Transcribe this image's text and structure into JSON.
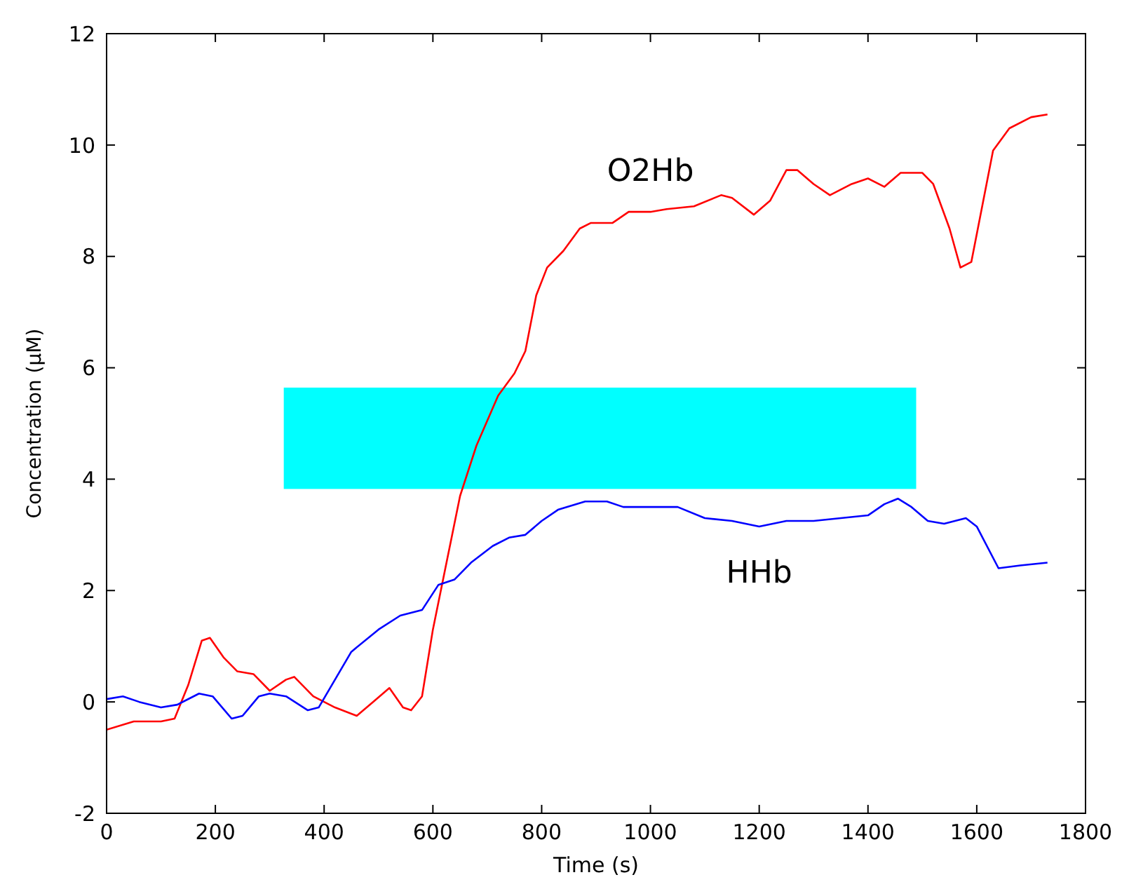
{
  "chart_data": {
    "type": "line",
    "xlabel": "Time (s)",
    "ylabel": "Concentration (μM)",
    "xlim": [
      0,
      1800
    ],
    "xticks": [
      0,
      200,
      400,
      600,
      800,
      1000,
      1200,
      1400,
      1600,
      1800
    ],
    "ylim": [
      -2,
      12
    ],
    "yticks": [
      -2,
      0,
      2,
      4,
      6,
      8,
      10,
      12
    ],
    "marker": "none",
    "line_style": "solid",
    "series": [
      {
        "name": "O2Hb",
        "color": "#ff0000",
        "x": [
          0,
          50,
          100,
          125,
          150,
          175,
          190,
          215,
          240,
          270,
          300,
          330,
          345,
          380,
          420,
          460,
          490,
          520,
          545,
          560,
          580,
          600,
          625,
          650,
          680,
          720,
          750,
          770,
          790,
          810,
          840,
          870,
          890,
          930,
          960,
          1000,
          1030,
          1080,
          1130,
          1150,
          1190,
          1220,
          1250,
          1270,
          1300,
          1330,
          1370,
          1400,
          1430,
          1460,
          1500,
          1520,
          1550,
          1570,
          1590,
          1610,
          1630,
          1660,
          1700,
          1730
        ],
        "values": [
          -0.5,
          -0.35,
          -0.35,
          -0.3,
          0.3,
          1.1,
          1.15,
          0.8,
          0.55,
          0.5,
          0.2,
          0.4,
          0.45,
          0.1,
          -0.1,
          -0.25,
          0,
          0.25,
          -0.1,
          -0.15,
          0.1,
          1.3,
          2.5,
          3.7,
          4.6,
          5.5,
          5.9,
          6.3,
          7.3,
          7.8,
          8.1,
          8.5,
          8.6,
          8.6,
          8.8,
          8.8,
          8.85,
          8.9,
          9.1,
          9.05,
          8.75,
          9.0,
          9.55,
          9.55,
          9.3,
          9.1,
          9.3,
          9.4,
          9.25,
          9.5,
          9.5,
          9.3,
          8.5,
          7.8,
          7.9,
          8.9,
          9.9,
          10.3,
          10.5,
          10.55
        ]
      },
      {
        "name": "HHb",
        "color": "#0000ff",
        "x": [
          0,
          30,
          60,
          100,
          130,
          170,
          195,
          230,
          250,
          280,
          300,
          330,
          370,
          390,
          420,
          450,
          500,
          540,
          580,
          610,
          640,
          670,
          710,
          740,
          770,
          800,
          830,
          880,
          920,
          950,
          1050,
          1100,
          1150,
          1200,
          1250,
          1300,
          1350,
          1400,
          1430,
          1455,
          1480,
          1510,
          1540,
          1580,
          1600,
          1640,
          1680,
          1730
        ],
        "values": [
          0.05,
          0.1,
          0.0,
          -0.1,
          -0.05,
          0.15,
          0.1,
          -0.3,
          -0.25,
          0.1,
          0.15,
          0.1,
          -0.15,
          -0.1,
          0.4,
          0.9,
          1.3,
          1.55,
          1.65,
          2.1,
          2.2,
          2.5,
          2.8,
          2.95,
          3.0,
          3.25,
          3.45,
          3.6,
          3.6,
          3.5,
          3.5,
          3.3,
          3.25,
          3.15,
          3.25,
          3.25,
          3.3,
          3.35,
          3.55,
          3.65,
          3.5,
          3.25,
          3.2,
          3.3,
          3.15,
          2.4,
          2.45,
          2.5
        ]
      }
    ]
  }
}
